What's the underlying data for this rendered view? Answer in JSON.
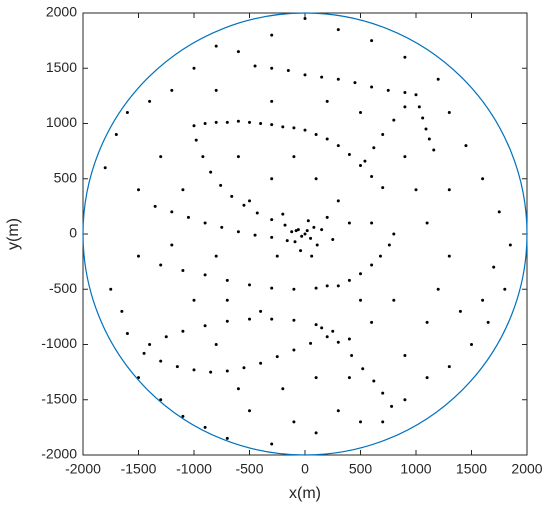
{
  "chart_data": {
    "type": "scatter",
    "xlabel": "x(m)",
    "ylabel": "y(m)",
    "xlim": [
      -2000,
      2000
    ],
    "ylim": [
      -2000,
      2000
    ],
    "xticks": [
      -2000,
      -1500,
      -1000,
      -500,
      0,
      500,
      1000,
      1500,
      2000
    ],
    "yticks": [
      -2000,
      -1500,
      -1000,
      -500,
      0,
      500,
      1000,
      1500,
      2000
    ],
    "color": "#000000",
    "circle": {
      "radius": 2000,
      "color": "#0072bd"
    },
    "x": [
      -1000,
      -900,
      -800,
      -700,
      -600,
      -500,
      -400,
      -300,
      -200,
      -100,
      0,
      100,
      200,
      300,
      400,
      500,
      600,
      700,
      -980,
      -920,
      -850,
      -760,
      -660,
      -550,
      -430,
      -300,
      -180,
      -80,
      -450,
      -300,
      -150,
      0,
      150,
      300,
      450,
      600,
      750,
      900,
      1000,
      1030,
      1060,
      1090,
      1120,
      1160,
      900,
      800,
      700,
      620,
      540,
      800,
      760,
      680,
      600,
      500,
      400,
      300,
      -1350,
      -1200,
      -1050,
      -900,
      -750,
      -600,
      -450,
      -300,
      -1300,
      -1100,
      -900,
      -700,
      -500,
      -300,
      -100,
      100,
      200,
      -1400,
      -1250,
      -1100,
      -900,
      -700,
      -500,
      -300,
      -100,
      100,
      250,
      400,
      -1450,
      -1300,
      -1150,
      -1000,
      -850,
      -700,
      -550,
      -400,
      -250,
      -100,
      50,
      200,
      150,
      300,
      420,
      520,
      620,
      700,
      780,
      0,
      20,
      -30,
      50,
      -60,
      80,
      -90,
      30,
      -120,
      110,
      -40,
      150,
      -160,
      60,
      200,
      -200,
      250,
      -250,
      -1800,
      -1700,
      -1600,
      -1500,
      -1750,
      -1650,
      -1500,
      -1300,
      -1100,
      -900,
      -700,
      -500,
      -300,
      -100,
      100,
      300,
      500,
      700,
      900,
      1100,
      1300,
      1500,
      1650,
      1800,
      1850,
      1750,
      1600,
      1450,
      1300,
      1200,
      900,
      600,
      300,
      0,
      -300,
      -600,
      -800,
      -1000,
      -1200,
      -1400,
      -1300,
      -1100,
      -1200,
      -1000,
      -800,
      -600,
      -200,
      100,
      400,
      900,
      1100,
      1200,
      1300,
      1100,
      1000,
      1300,
      900,
      1400,
      600,
      500,
      800,
      -400,
      -700,
      -800,
      -500,
      -300,
      -100,
      100,
      300,
      400,
      600,
      -600,
      -300,
      200,
      500,
      -800,
      -1500,
      1700,
      1600,
      -1600
    ],
    "y": [
      980,
      1000,
      1010,
      1010,
      1020,
      1010,
      1000,
      990,
      970,
      960,
      940,
      900,
      860,
      800,
      720,
      620,
      520,
      420,
      850,
      700,
      560,
      440,
      340,
      260,
      190,
      130,
      80,
      30,
      1520,
      1500,
      1480,
      1440,
      1420,
      1400,
      1370,
      1330,
      1300,
      1280,
      1260,
      1150,
      1050,
      950,
      860,
      760,
      1150,
      1030,
      900,
      780,
      660,
      0,
      -100,
      -200,
      -280,
      -360,
      -420,
      -470,
      250,
      200,
      150,
      100,
      60,
      20,
      -10,
      -30,
      -280,
      -330,
      -370,
      -420,
      -460,
      -490,
      -500,
      -490,
      -470,
      -1000,
      -930,
      -880,
      -830,
      -790,
      -770,
      -770,
      -780,
      -820,
      -880,
      -950,
      -1080,
      -1150,
      -1200,
      -1230,
      -1250,
      -1240,
      -1210,
      -1170,
      -1110,
      -1050,
      -990,
      -930,
      -850,
      -980,
      -1100,
      -1220,
      -1330,
      -1440,
      -1560,
      0,
      30,
      -20,
      -40,
      40,
      60,
      -70,
      120,
      20,
      -100,
      -150,
      40,
      -60,
      -200,
      150,
      180,
      -50,
      -200,
      600,
      900,
      1100,
      -200,
      -500,
      -700,
      -1300,
      -1500,
      -1650,
      -1750,
      -1850,
      -1600,
      -1900,
      -1700,
      -1800,
      -1600,
      -1700,
      -1700,
      -1500,
      -1300,
      -1200,
      -1000,
      -800,
      -500,
      -100,
      200,
      500,
      800,
      1100,
      1400,
      1600,
      1750,
      1850,
      1950,
      1800,
      1650,
      1700,
      1500,
      1300,
      1200,
      700,
      400,
      -100,
      -600,
      -1000,
      -1400,
      -1400,
      -1300,
      -1300,
      -1100,
      -800,
      -500,
      -200,
      100,
      400,
      400,
      700,
      -700,
      -800,
      -600,
      -600,
      -700,
      -600,
      -200,
      300,
      500,
      700,
      500,
      300,
      100,
      100,
      700,
      1200,
      1200,
      1100,
      1300,
      400,
      -300,
      -600,
      -900
    ]
  }
}
